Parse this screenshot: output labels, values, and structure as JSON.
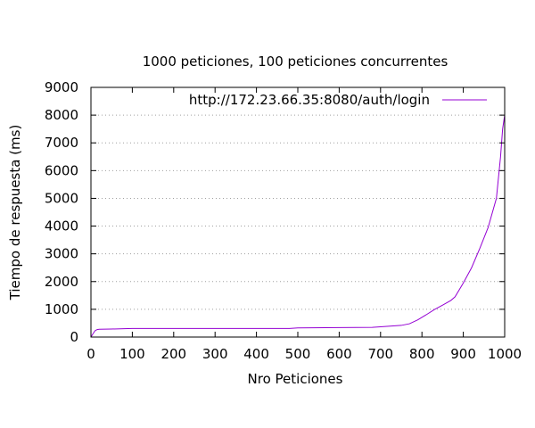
{
  "chart_data": {
    "type": "line",
    "title": "1000 peticiones, 100 peticiones concurrentes",
    "xlabel": "Nro Peticiones",
    "ylabel": "Tiempo de respuesta (ms)",
    "xlim": [
      0,
      1000
    ],
    "ylim": [
      0,
      9000
    ],
    "x_ticks": [
      0,
      100,
      200,
      300,
      400,
      500,
      600,
      700,
      800,
      900,
      1000
    ],
    "y_ticks": [
      0,
      1000,
      2000,
      3000,
      4000,
      5000,
      6000,
      7000,
      8000,
      9000
    ],
    "grid": "horizontal-dotted",
    "legend_position": "top-right",
    "series": [
      {
        "name": "http://172.23.66.35:8080/auth/login",
        "color": "#9400d3",
        "x": [
          0,
          5,
          10,
          15,
          20,
          50,
          80,
          100,
          200,
          300,
          400,
          480,
          500,
          600,
          680,
          700,
          750,
          770,
          790,
          810,
          830,
          850,
          870,
          880,
          900,
          920,
          940,
          960,
          980,
          990,
          995,
          1000
        ],
        "y": [
          0,
          120,
          230,
          270,
          280,
          290,
          300,
          310,
          310,
          310,
          310,
          310,
          330,
          340,
          350,
          370,
          420,
          480,
          620,
          800,
          990,
          1150,
          1320,
          1450,
          1950,
          2500,
          3200,
          3950,
          5000,
          6500,
          7500,
          8000
        ]
      }
    ]
  }
}
